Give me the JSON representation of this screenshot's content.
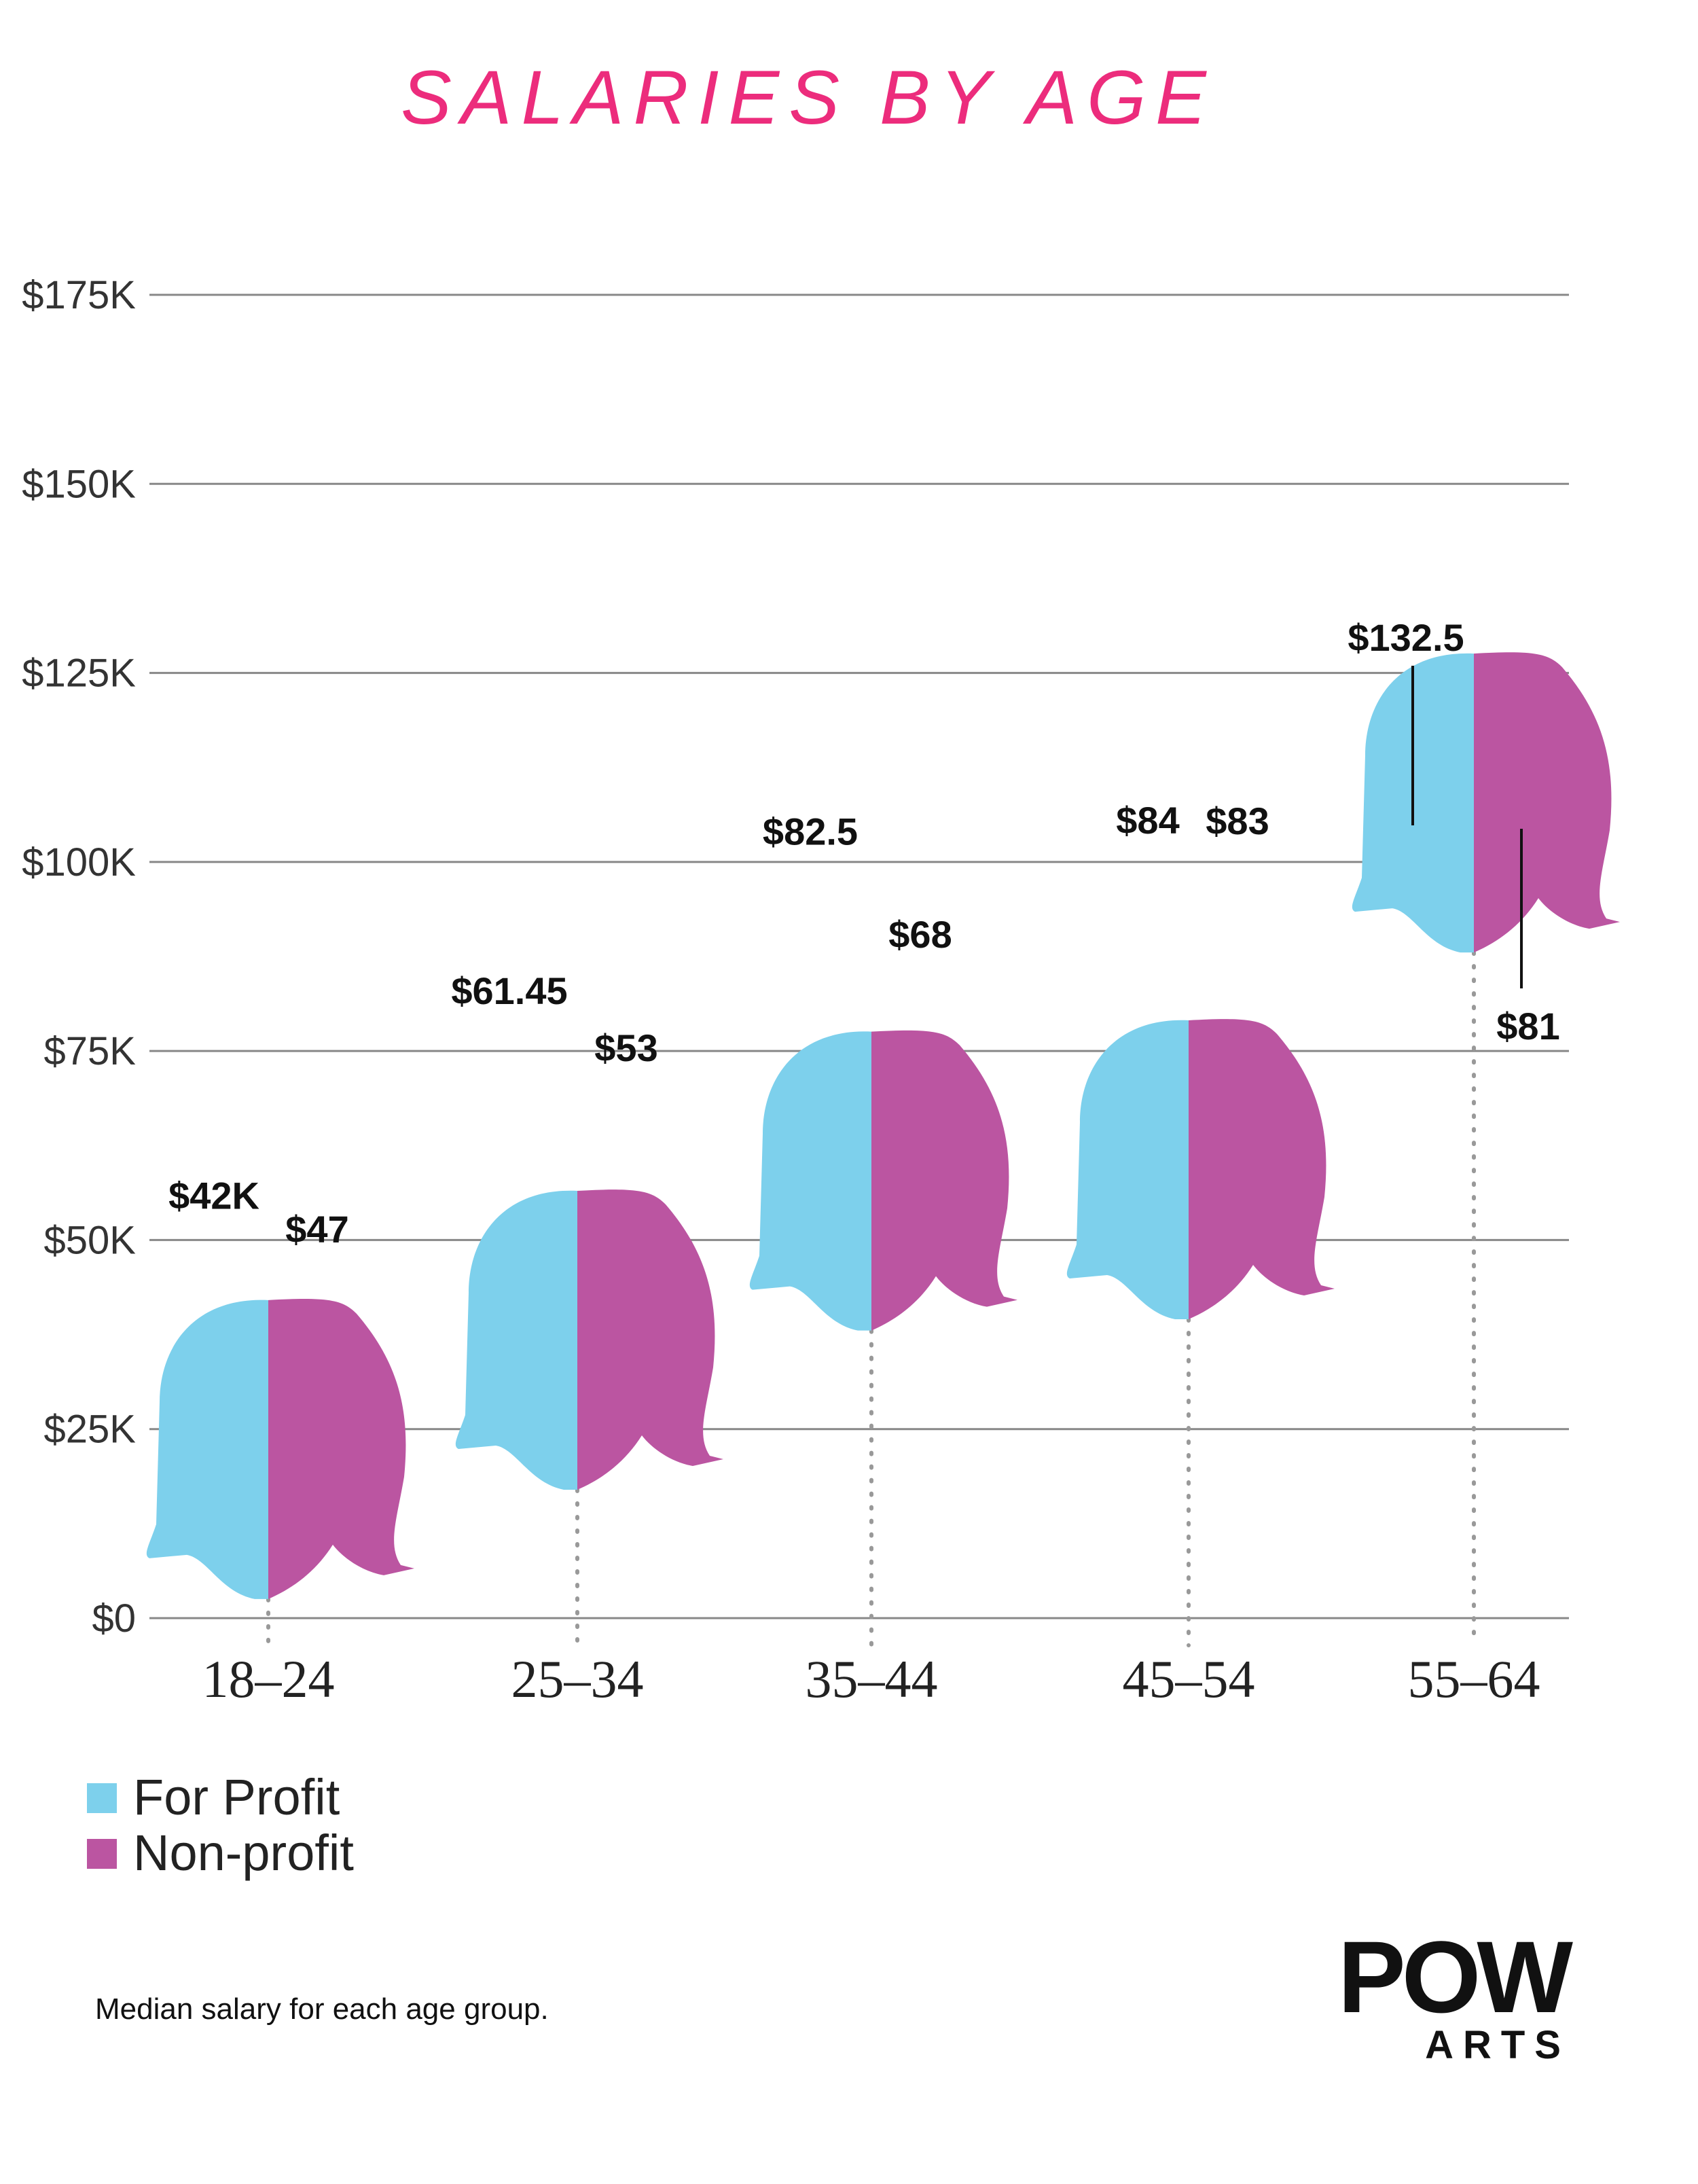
{
  "title": "SALARIES BY AGE",
  "note": "Median salary for each age group.",
  "logo": {
    "main": "POW",
    "sub": "ARTS"
  },
  "colors": {
    "for_profit": "#7dd0ec",
    "non_profit": "#bb55a1",
    "title": "#ec2c7c",
    "grid": "#888888"
  },
  "legend": [
    {
      "label": "For Profit",
      "color": "#7dd0ec"
    },
    {
      "label": "Non-profit",
      "color": "#bb55a1"
    }
  ],
  "chart_data": {
    "type": "bar",
    "categories": [
      "18–24",
      "25–34",
      "35–44",
      "45–54",
      "55–64"
    ],
    "y_ticks": [
      "$0",
      "$25K",
      "$50K",
      "$75K",
      "$100K",
      "$125K",
      "$150K",
      "$175K"
    ],
    "ylim": [
      0,
      175
    ],
    "grid": true,
    "legend_position": "bottom-left",
    "series": [
      {
        "name": "For Profit",
        "values": [
          42,
          61.45,
          82.5,
          84,
          132.5
        ],
        "labels": [
          "$42K",
          "$61.45",
          "$82.5",
          "$84",
          "$132.5"
        ]
      },
      {
        "name": "Non-profit",
        "values": [
          47,
          53,
          68,
          83,
          81
        ],
        "labels": [
          "$47",
          "$53",
          "$68",
          "$83",
          "$81"
        ]
      }
    ]
  }
}
